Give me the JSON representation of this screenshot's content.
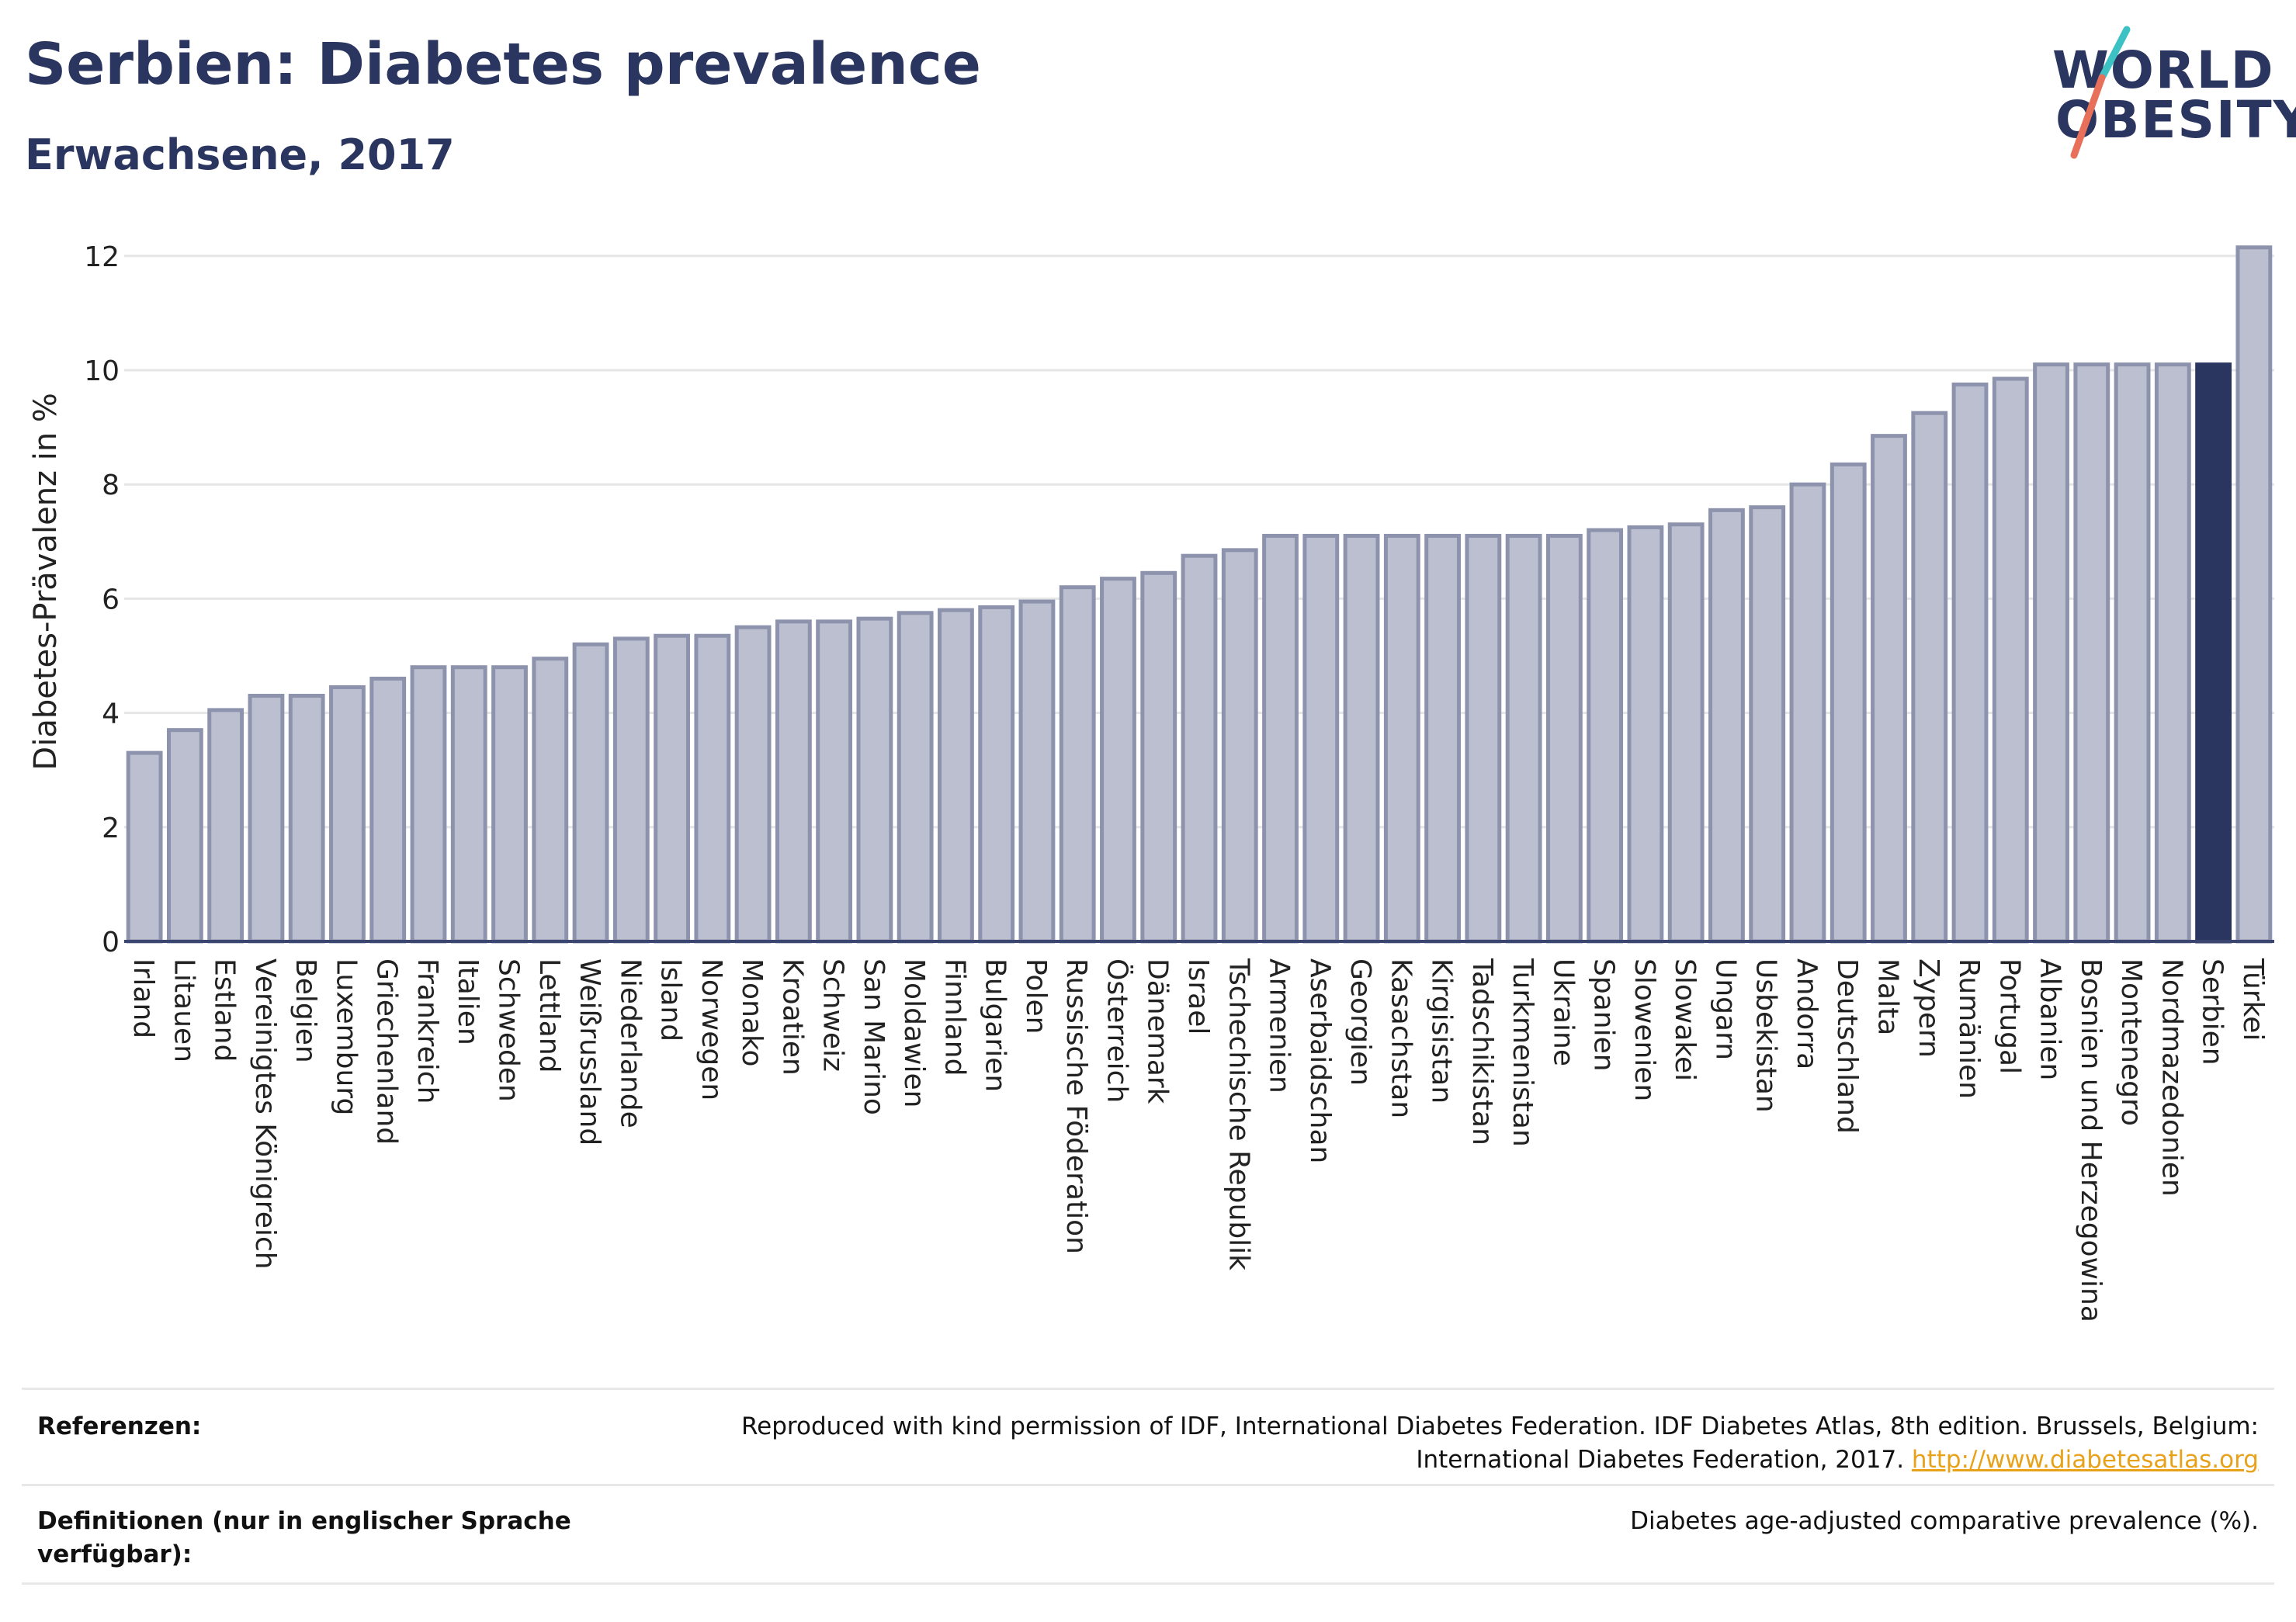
{
  "header": {
    "title": "Serbien: Diabetes prevalence",
    "subtitle": "Erwachsene, 2017"
  },
  "logo": {
    "line1": "WORLD",
    "line2": "OBESITY",
    "accent_colors": [
      "#3cc1c4",
      "#e8705a"
    ]
  },
  "colors": {
    "bar": "#bcbfcf",
    "bar_border": "#8d93ad",
    "highlight": "#2b3660",
    "grid": "#e6e6e6",
    "axis": "#3a4570"
  },
  "chart_data": {
    "type": "bar",
    "ylabel": "Diabetes-Prävalenz in %",
    "ylim": [
      0,
      12.6
    ],
    "yticks": [
      0,
      2,
      4,
      6,
      8,
      10,
      12
    ],
    "grid": true,
    "highlight": "Serbien",
    "categories": [
      "Irland",
      "Litauen",
      "Estland",
      "Vereinigtes Königreich",
      "Belgien",
      "Luxemburg",
      "Griechenland",
      "Frankreich",
      "Italien",
      "Schweden",
      "Lettland",
      "Weißrussland",
      "Niederlande",
      "Island",
      "Norwegen",
      "Monako",
      "Kroatien",
      "Schweiz",
      "San Marino",
      "Moldawien",
      "Finnland",
      "Bulgarien",
      "Polen",
      "Russische Föderation",
      "Österreich",
      "Dänemark",
      "Israel",
      "Tschechische Republik",
      "Armenien",
      "Aserbaidschan",
      "Georgien",
      "Kasachstan",
      "Kirgisistan",
      "Tadschikistan",
      "Turkmenistan",
      "Ukraine",
      "Spanien",
      "Slowenien",
      "Slowakei",
      "Ungarn",
      "Usbekistan",
      "Andorra",
      "Deutschland",
      "Malta",
      "Zypern",
      "Rumänien",
      "Portugal",
      "Albanien",
      "Bosnien und Herzegowina",
      "Montenegro",
      "Nordmazedonien",
      "Serbien",
      "Türkei"
    ],
    "values": [
      3.3,
      3.7,
      4.05,
      4.3,
      4.3,
      4.45,
      4.6,
      4.8,
      4.8,
      4.8,
      4.95,
      5.2,
      5.3,
      5.35,
      5.35,
      5.5,
      5.6,
      5.6,
      5.65,
      5.75,
      5.8,
      5.85,
      5.95,
      6.2,
      6.35,
      6.45,
      6.75,
      6.85,
      7.1,
      7.1,
      7.1,
      7.1,
      7.1,
      7.1,
      7.1,
      7.1,
      7.2,
      7.25,
      7.3,
      7.55,
      7.6,
      8.0,
      8.35,
      8.85,
      9.25,
      9.75,
      9.85,
      10.1,
      10.1,
      10.1,
      10.1,
      10.1,
      12.15
    ]
  },
  "footer": {
    "references_label": "Referenzen:",
    "references_line1": "Reproduced with kind permission of IDF, International Diabetes Federation. IDF Diabetes Atlas, 8th edition. Brussels, Belgium:",
    "references_line2": "International Diabetes Federation, 2017.",
    "references_link": "http://www.diabetesatlas.org",
    "definitions_label": "Definitionen (nur in englischer Sprache verfügbar):",
    "definitions_value": "Diabetes age-adjusted comparative prevalence (%)."
  }
}
